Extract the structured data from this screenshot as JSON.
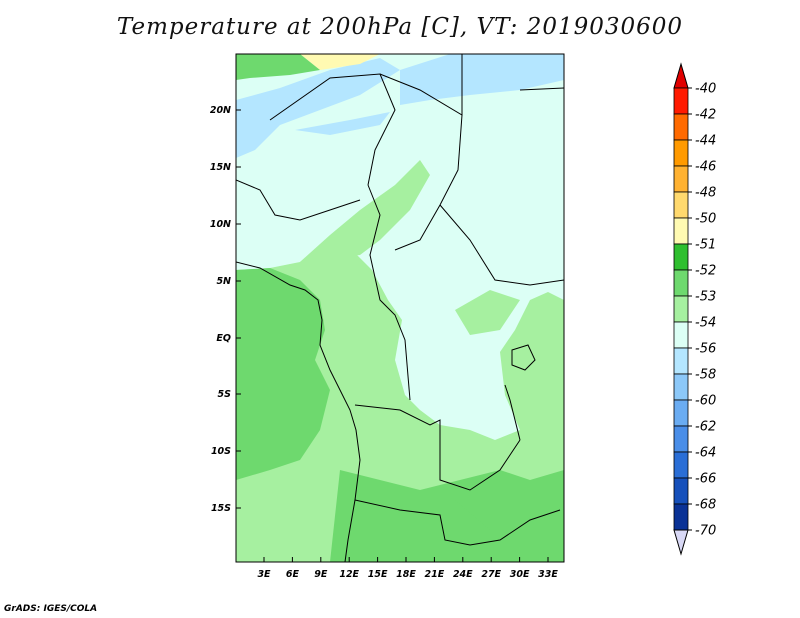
{
  "title": "Temperature at 200hPa [C], VT: 2019030600",
  "credit": "GrADS: IGES/COLA",
  "map": {
    "lat_labels": [
      "20N",
      "15N",
      "10N",
      "5N",
      "EQ",
      "5S",
      "10S",
      "15S"
    ],
    "lon_labels": [
      "3E",
      "6E",
      "9E",
      "12E",
      "15E",
      "18E",
      "21E",
      "24E",
      "27E",
      "30E",
      "33E"
    ]
  },
  "colorbar": {
    "labels": [
      "-40",
      "-42",
      "-44",
      "-46",
      "-48",
      "-50",
      "-51",
      "-52",
      "-53",
      "-54",
      "-56",
      "-58",
      "-60",
      "-62",
      "-64",
      "-66",
      "-68",
      "-70"
    ],
    "colors": [
      "#ff1a00",
      "#ff6a00",
      "#ff9a00",
      "#ffb232",
      "#ffd96e",
      "#fffab2",
      "#2fbf2f",
      "#6ed96e",
      "#a6f0a0",
      "#dcfff5",
      "#b4e6ff",
      "#8cc8f8",
      "#6aacf2",
      "#4a8ee8",
      "#2a6ed6",
      "#1650bb",
      "#0a3296",
      "#000a6e"
    ],
    "top_arrow_color": "#e00000",
    "bottom_arrow_color": "#d8d8f5"
  }
}
